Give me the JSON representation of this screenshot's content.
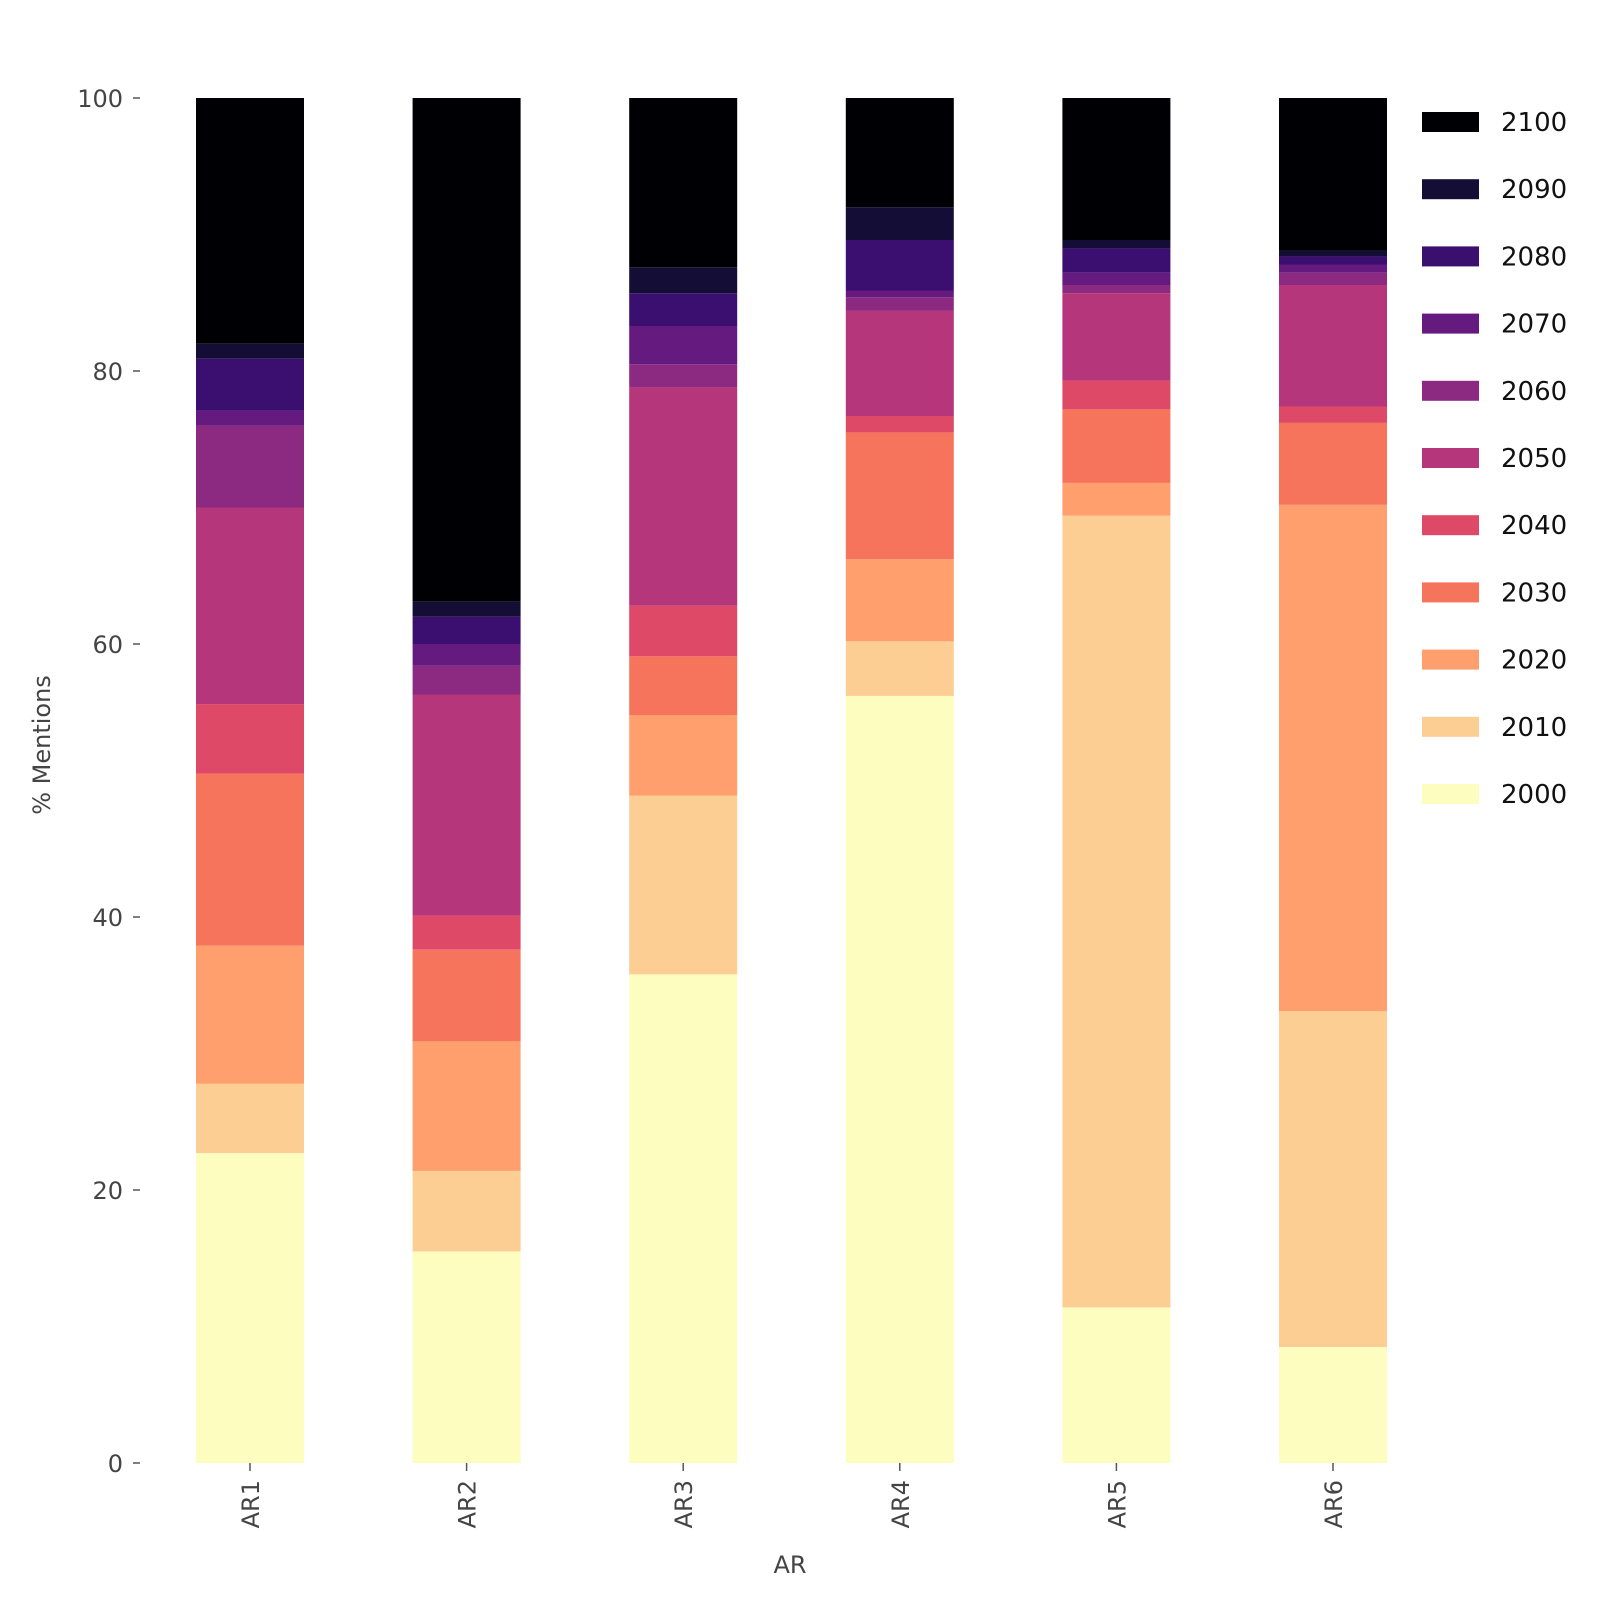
{
  "chart_data": {
    "type": "bar",
    "stacked": true,
    "title": "",
    "xlabel": "AR",
    "ylabel": "% Mentions",
    "ylim": [
      0,
      100
    ],
    "yticks": [
      0,
      20,
      40,
      60,
      80,
      100
    ],
    "grid": false,
    "legend_position": "right",
    "categories": [
      "AR1",
      "AR2",
      "AR3",
      "AR4",
      "AR5",
      "AR6"
    ],
    "series": [
      {
        "name": "2000",
        "color": "#fcfdbf",
        "values": [
          22.7,
          15.5,
          35.8,
          56.2,
          11.4,
          8.5
        ]
      },
      {
        "name": "2010",
        "color": "#fcce93",
        "values": [
          5.1,
          5.9,
          13.1,
          4.0,
          58.0,
          24.6
        ]
      },
      {
        "name": "2020",
        "color": "#fe9f6d",
        "values": [
          10.1,
          9.5,
          5.9,
          6.0,
          2.4,
          37.1
        ]
      },
      {
        "name": "2030",
        "color": "#f6735c",
        "values": [
          12.6,
          6.7,
          4.3,
          9.3,
          5.4,
          6.0
        ]
      },
      {
        "name": "2040",
        "color": "#de4968",
        "values": [
          5.1,
          2.5,
          3.7,
          1.2,
          2.1,
          1.2
        ]
      },
      {
        "name": "2050",
        "color": "#b5367a",
        "values": [
          14.4,
          16.2,
          16.0,
          7.7,
          6.4,
          8.9
        ]
      },
      {
        "name": "2060",
        "color": "#8c2981",
        "values": [
          6.0,
          2.1,
          1.7,
          1.0,
          0.6,
          0.9
        ]
      },
      {
        "name": "2070",
        "color": "#651a80",
        "values": [
          1.1,
          1.6,
          2.8,
          0.5,
          0.9,
          0.6
        ]
      },
      {
        "name": "2080",
        "color": "#3b0f70",
        "values": [
          3.8,
          2.0,
          2.4,
          3.7,
          1.8,
          0.6
        ]
      },
      {
        "name": "2090",
        "color": "#140e36",
        "values": [
          1.1,
          1.1,
          1.9,
          2.4,
          0.6,
          0.4
        ]
      },
      {
        "name": "2100",
        "color": "#000004",
        "values": [
          18.0,
          36.9,
          12.4,
          8.0,
          10.4,
          11.2
        ]
      }
    ]
  }
}
